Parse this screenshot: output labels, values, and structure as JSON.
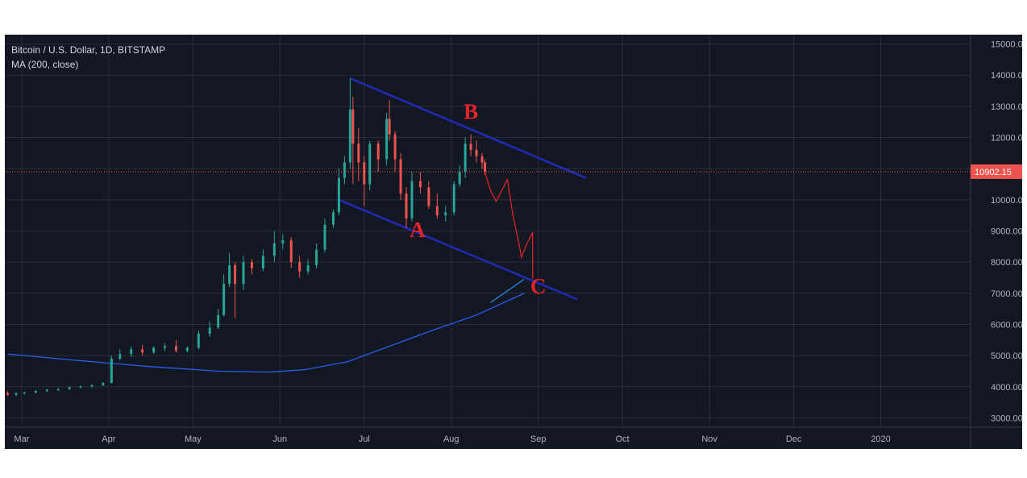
{
  "chart_data": {
    "type": "candlestick",
    "title": "Bitcoin / U.S. Dollar, 1D, BITSTAMP",
    "indicator": "MA (200, close)",
    "x_tick_labels": [
      "Mar",
      "Apr",
      "May",
      "Jun",
      "Jul",
      "Aug",
      "Sep",
      "Oct",
      "Nov",
      "Dec",
      "2020"
    ],
    "y_tick_labels": [
      "15000.00",
      "14000.00",
      "13000.00",
      "12000.00",
      "11000.00",
      "10000.00",
      "9000.00",
      "8000.00",
      "7000.00",
      "6000.00",
      "5000.00",
      "4000.00",
      "3000.00"
    ],
    "ylim": [
      2700,
      15300
    ],
    "xlim": [
      "2019-02-23",
      "2020-02-02"
    ],
    "grid": true,
    "last_price": "10902.15",
    "last_price_value": 10902.15,
    "colors": {
      "background": "#131722",
      "grid": "#2a2e39",
      "up": "#26a69a",
      "down": "#ef5350",
      "ma": "#2962ff",
      "price_line": "#ef5350",
      "price_badge": "#ef5350",
      "channel": "#1f2bb8",
      "annotation": "#e3242b",
      "text": "#b2b5be"
    },
    "ohlc": [
      [
        "2019-02-24",
        3800,
        3850,
        3700,
        3740
      ],
      [
        "2019-02-27",
        3740,
        3820,
        3700,
        3790
      ],
      [
        "2019-03-02",
        3790,
        3840,
        3750,
        3810
      ],
      [
        "2019-03-06",
        3810,
        3900,
        3780,
        3860
      ],
      [
        "2019-03-10",
        3860,
        3930,
        3830,
        3900
      ],
      [
        "2019-03-14",
        3900,
        3960,
        3860,
        3920
      ],
      [
        "2019-03-18",
        3920,
        4010,
        3890,
        3980
      ],
      [
        "2019-03-22",
        3980,
        4040,
        3940,
        4010
      ],
      [
        "2019-03-26",
        4010,
        4080,
        3970,
        4050
      ],
      [
        "2019-03-30",
        4050,
        4150,
        4020,
        4120
      ],
      [
        "2019-04-02",
        4120,
        5000,
        4100,
        4900
      ],
      [
        "2019-04-05",
        4900,
        5200,
        4850,
        5050
      ],
      [
        "2019-04-09",
        5050,
        5300,
        4950,
        5200
      ],
      [
        "2019-04-13",
        5200,
        5350,
        5000,
        5100
      ],
      [
        "2019-04-17",
        5100,
        5300,
        5050,
        5250
      ],
      [
        "2019-04-21",
        5250,
        5400,
        5150,
        5300
      ],
      [
        "2019-04-25",
        5300,
        5500,
        5100,
        5150
      ],
      [
        "2019-04-29",
        5150,
        5300,
        5100,
        5250
      ],
      [
        "2019-05-03",
        5250,
        5800,
        5200,
        5700
      ],
      [
        "2019-05-07",
        5700,
        6100,
        5600,
        5900
      ],
      [
        "2019-05-10",
        5900,
        6500,
        5850,
        6300
      ],
      [
        "2019-05-12",
        6300,
        7600,
        6250,
        7300
      ],
      [
        "2019-05-14",
        7300,
        8300,
        7200,
        7900
      ],
      [
        "2019-05-16",
        7900,
        8000,
        6200,
        7300
      ],
      [
        "2019-05-19",
        7300,
        8200,
        7100,
        8000
      ],
      [
        "2019-05-22",
        8000,
        8100,
        7600,
        7800
      ],
      [
        "2019-05-26",
        7800,
        8400,
        7700,
        8200
      ],
      [
        "2019-05-30",
        8200,
        9000,
        8000,
        8600
      ],
      [
        "2019-06-02",
        8600,
        8900,
        8400,
        8700
      ],
      [
        "2019-06-05",
        8700,
        8800,
        7800,
        8000
      ],
      [
        "2019-06-08",
        8000,
        8200,
        7500,
        7700
      ],
      [
        "2019-06-11",
        7700,
        8100,
        7600,
        7900
      ],
      [
        "2019-06-14",
        7900,
        8600,
        7800,
        8400
      ],
      [
        "2019-06-17",
        8400,
        9400,
        8300,
        9200
      ],
      [
        "2019-06-20",
        9200,
        9700,
        9100,
        9600
      ],
      [
        "2019-06-22",
        9600,
        11000,
        9500,
        10700
      ],
      [
        "2019-06-24",
        10700,
        11400,
        10500,
        11200
      ],
      [
        "2019-06-26",
        11200,
        13900,
        11000,
        12900
      ],
      [
        "2019-06-27",
        12900,
        13300,
        10500,
        11800
      ],
      [
        "2019-06-29",
        11800,
        12300,
        10600,
        11200
      ],
      [
        "2019-07-01",
        11200,
        11400,
        9800,
        10500
      ],
      [
        "2019-07-03",
        10500,
        11900,
        10300,
        11800
      ],
      [
        "2019-07-06",
        11800,
        11900,
        10900,
        11300
      ],
      [
        "2019-07-09",
        11300,
        12800,
        11100,
        12600
      ],
      [
        "2019-07-10",
        12600,
        13200,
        11900,
        12100
      ],
      [
        "2019-07-12",
        12100,
        12200,
        10900,
        11300
      ],
      [
        "2019-07-14",
        11300,
        11500,
        10000,
        10200
      ],
      [
        "2019-07-16",
        10200,
        10400,
        9100,
        9400
      ],
      [
        "2019-07-18",
        9400,
        10900,
        9300,
        10600
      ],
      [
        "2019-07-21",
        10600,
        10900,
        10200,
        10400
      ],
      [
        "2019-07-24",
        10400,
        10600,
        9700,
        9800
      ],
      [
        "2019-07-27",
        9800,
        10200,
        9400,
        9500
      ],
      [
        "2019-07-30",
        9500,
        9800,
        9300,
        9600
      ],
      [
        "2019-08-02",
        9600,
        10600,
        9500,
        10500
      ],
      [
        "2019-08-04",
        10500,
        11100,
        10400,
        10900
      ],
      [
        "2019-08-06",
        10900,
        12000,
        10700,
        11800
      ],
      [
        "2019-08-08",
        11800,
        12100,
        11400,
        11600
      ],
      [
        "2019-08-10",
        11600,
        11900,
        11200,
        11400
      ],
      [
        "2019-08-12",
        11400,
        11500,
        11000,
        11200
      ],
      [
        "2019-08-13",
        11200,
        11300,
        10800,
        10900
      ]
    ],
    "ma200": [
      [
        "2019-02-24",
        5050
      ],
      [
        "2019-03-20",
        4850
      ],
      [
        "2019-04-15",
        4650
      ],
      [
        "2019-05-10",
        4500
      ],
      [
        "2019-05-28",
        4470
      ],
      [
        "2019-06-10",
        4550
      ],
      [
        "2019-06-25",
        4800
      ],
      [
        "2019-07-10",
        5300
      ],
      [
        "2019-07-25",
        5800
      ],
      [
        "2019-08-10",
        6300
      ],
      [
        "2019-08-27",
        7000
      ]
    ],
    "ma_projection": [
      [
        "2019-08-15",
        6700
      ],
      [
        "2019-08-27",
        7450
      ]
    ],
    "upper_channel": [
      [
        "2019-06-26",
        13900
      ],
      [
        "2019-09-18",
        10700
      ]
    ],
    "lower_channel": [
      [
        "2019-06-22",
        10000
      ],
      [
        "2019-09-15",
        6800
      ]
    ],
    "projection_path": [
      [
        "2019-08-13",
        10900
      ],
      [
        "2019-08-15",
        10300
      ],
      [
        "2019-08-17",
        9950
      ],
      [
        "2019-08-21",
        10650
      ],
      [
        "2019-08-23",
        9500
      ],
      [
        "2019-08-25",
        8650
      ],
      [
        "2019-08-26",
        8150
      ],
      [
        "2019-08-28",
        8600
      ],
      [
        "2019-08-30",
        8950
      ],
      [
        "2019-08-30",
        7450
      ]
    ],
    "annotations": [
      {
        "text": "A",
        "date": "2019-07-20",
        "price": 8800
      },
      {
        "text": "B",
        "date": "2019-08-08",
        "price": 12600
      },
      {
        "text": "C",
        "date": "2019-09-01",
        "price": 7000
      }
    ]
  }
}
